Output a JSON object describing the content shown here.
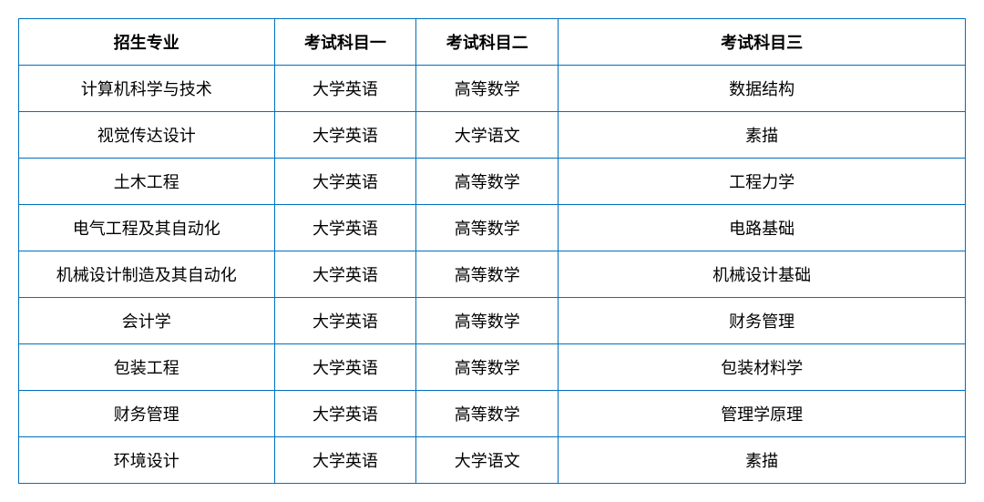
{
  "table": {
    "border_color": "#0070c0",
    "text_color": "#000000",
    "background_color": "#ffffff",
    "font_size": 18,
    "header_font_weight": "bold",
    "columns": [
      {
        "key": "major",
        "label": "招生专业",
        "width_pct": 27
      },
      {
        "key": "subject1",
        "label": "考试科目一",
        "width_pct": 15
      },
      {
        "key": "subject2",
        "label": "考试科目二",
        "width_pct": 15
      },
      {
        "key": "subject3",
        "label": "考试科目三",
        "width_pct": 43
      }
    ],
    "rows": [
      {
        "major": "计算机科学与技术",
        "subject1": "大学英语",
        "subject2": "高等数学",
        "subject3": "数据结构"
      },
      {
        "major": "视觉传达设计",
        "subject1": "大学英语",
        "subject2": "大学语文",
        "subject3": "素描"
      },
      {
        "major": "土木工程",
        "subject1": "大学英语",
        "subject2": "高等数学",
        "subject3": "工程力学"
      },
      {
        "major": "电气工程及其自动化",
        "subject1": "大学英语",
        "subject2": "高等数学",
        "subject3": "电路基础"
      },
      {
        "major": "机械设计制造及其自动化",
        "subject1": "大学英语",
        "subject2": "高等数学",
        "subject3": "机械设计基础"
      },
      {
        "major": "会计学",
        "subject1": "大学英语",
        "subject2": "高等数学",
        "subject3": "财务管理"
      },
      {
        "major": "包装工程",
        "subject1": "大学英语",
        "subject2": "高等数学",
        "subject3": "包装材料学"
      },
      {
        "major": "财务管理",
        "subject1": "大学英语",
        "subject2": "高等数学",
        "subject3": "管理学原理"
      },
      {
        "major": "环境设计",
        "subject1": "大学英语",
        "subject2": "大学语文",
        "subject3": "素描"
      }
    ]
  }
}
